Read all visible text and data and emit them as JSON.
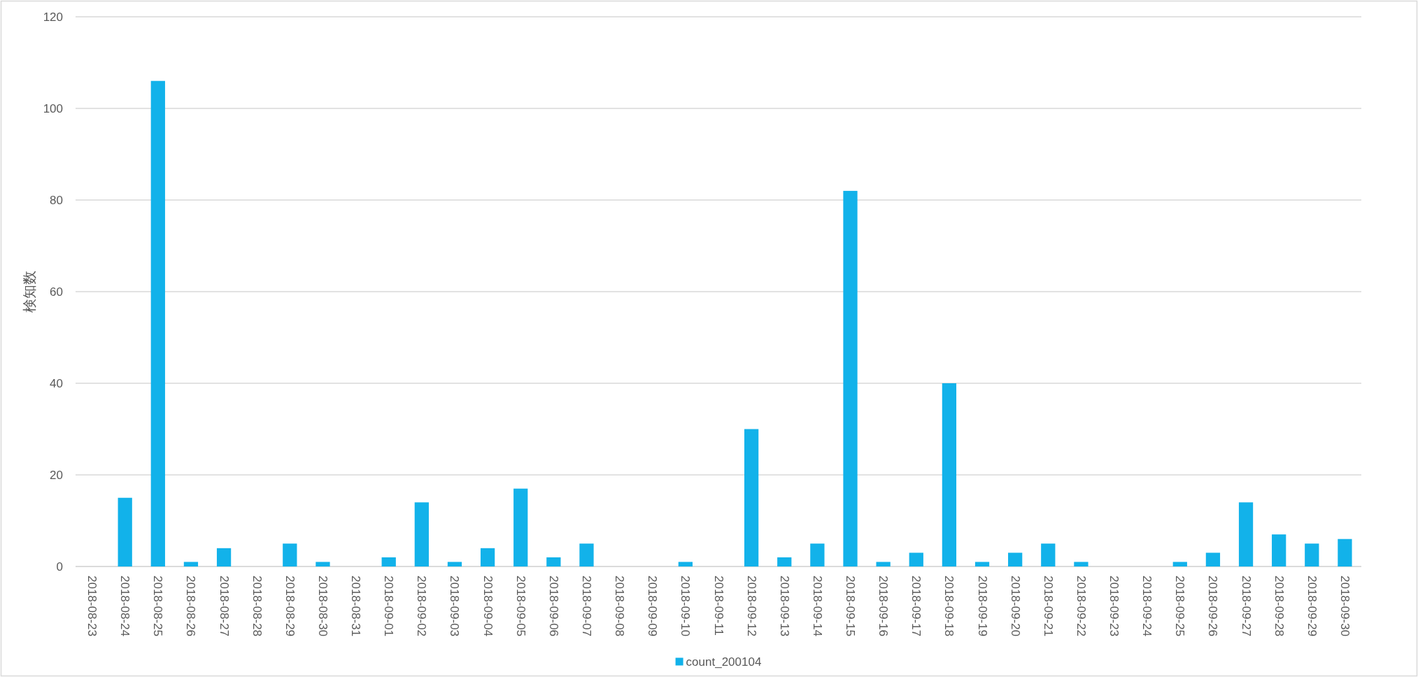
{
  "chart_data": {
    "type": "bar",
    "ylabel": "検知数",
    "categories": [
      "2018-08-23",
      "2018-08-24",
      "2018-08-25",
      "2018-08-26",
      "2018-08-27",
      "2018-08-28",
      "2018-08-29",
      "2018-08-30",
      "2018-08-31",
      "2018-09-01",
      "2018-09-02",
      "2018-09-03",
      "2018-09-04",
      "2018-09-05",
      "2018-09-06",
      "2018-09-07",
      "2018-09-08",
      "2018-09-09",
      "2018-09-10",
      "2018-09-11",
      "2018-09-12",
      "2018-09-13",
      "2018-09-14",
      "2018-09-15",
      "2018-09-16",
      "2018-09-17",
      "2018-09-18",
      "2018-09-19",
      "2018-09-20",
      "2018-09-21",
      "2018-09-22",
      "2018-09-23",
      "2018-09-24",
      "2018-09-25",
      "2018-09-26",
      "2018-09-27",
      "2018-09-28",
      "2018-09-29",
      "2018-09-30"
    ],
    "series": [
      {
        "name": "count_200104",
        "color": "#12b2ea",
        "values": [
          0,
          15,
          106,
          1,
          4,
          0,
          5,
          1,
          0,
          2,
          14,
          1,
          4,
          17,
          2,
          5,
          0,
          0,
          1,
          0,
          30,
          2,
          5,
          82,
          1,
          3,
          40,
          1,
          3,
          5,
          1,
          0,
          0,
          1,
          3,
          14,
          7,
          5,
          6
        ]
      }
    ],
    "ylim": [
      0,
      120
    ],
    "yticks": [
      0,
      20,
      40,
      60,
      80,
      100,
      120
    ],
    "grid": "y",
    "legend": "bottom"
  }
}
